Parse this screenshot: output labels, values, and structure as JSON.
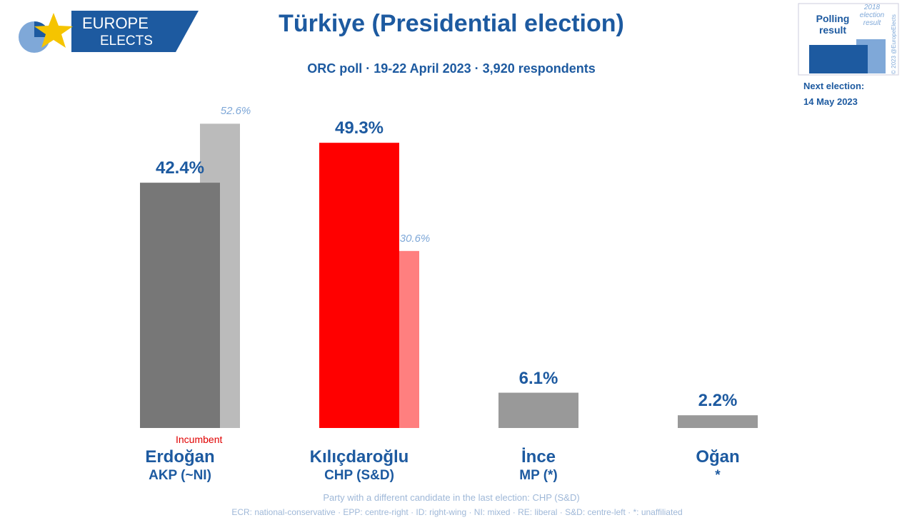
{
  "chart_data": {
    "type": "bar",
    "title": "Türkiye (Presidential election)",
    "subtitle": "ORC poll · 19-22 April 2023 · 3,920 respondents",
    "logo": [
      "EUROPE",
      "ELECTS"
    ],
    "next_election_label": "Next election:",
    "next_election_date": "14 May 2023",
    "copyright": "© 2023 @EuropeElects",
    "categories": [
      "Erdoğan",
      "Kılıçdaroğlu",
      "İnce",
      "Oğan"
    ],
    "parties": [
      "AKP (~NI)",
      "CHP (S&D)",
      "MP (*)",
      "*"
    ],
    "annotation": "Incumbent",
    "series": [
      {
        "name": "Polling result",
        "colors": [
          "#777777",
          "#ff0000",
          "#999999",
          "#999999"
        ],
        "values": [
          42.4,
          49.3,
          6.1,
          2.2
        ],
        "value_labels": [
          "42.4%",
          "49.3%",
          "6.1%",
          "2.2%"
        ]
      },
      {
        "name": "2018 election result",
        "colors": [
          "#bbbbbb",
          "#ff7f7f",
          "#bbbbbb",
          "#bbbbbb"
        ],
        "values": [
          52.6,
          30.6,
          null,
          null
        ],
        "value_labels": [
          "52.6%",
          "30.6%",
          null,
          null
        ]
      }
    ],
    "footnotes": [
      "Party with a different candidate in the last election: CHP (S&D)",
      "ECR: national-conservative · EPP: centre-right · ID: right-wing · NI: mixed · RE: liberal · S&D: centre-left · *: unaffiliated"
    ]
  }
}
